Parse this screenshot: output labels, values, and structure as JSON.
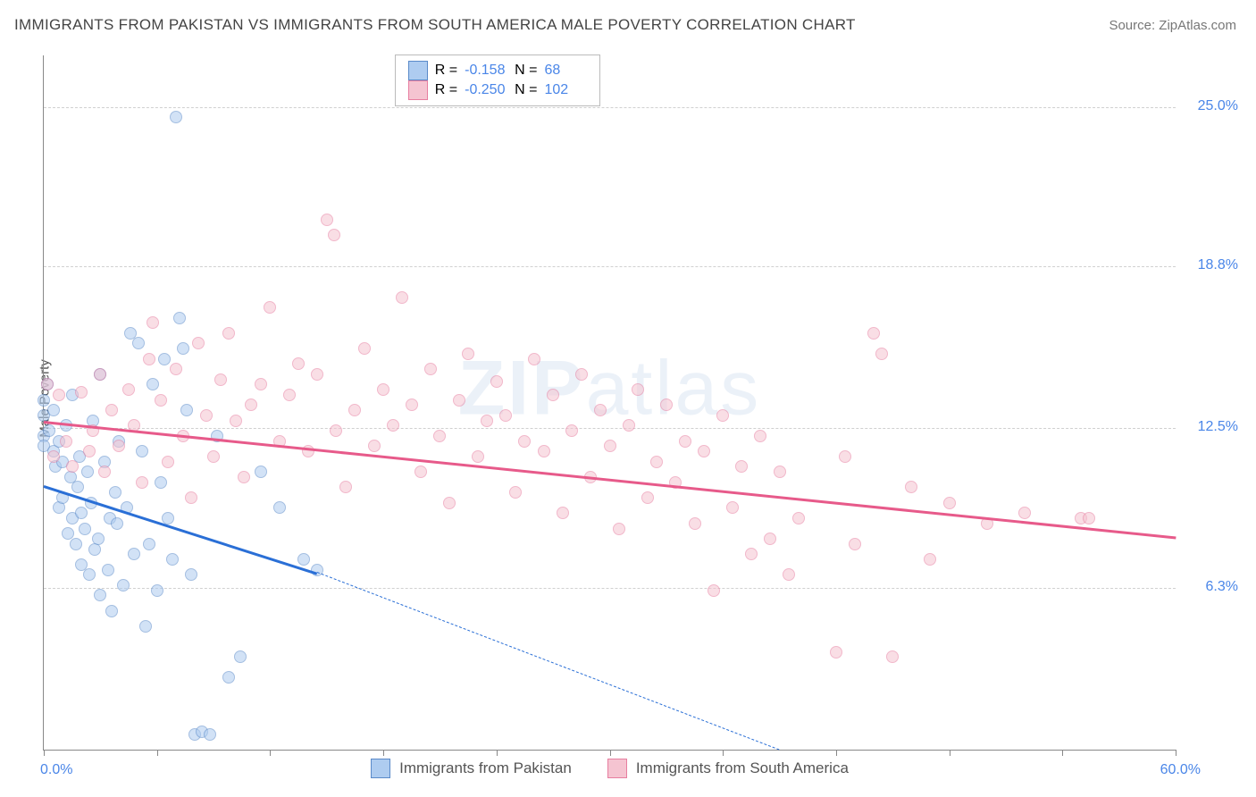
{
  "title": "IMMIGRANTS FROM PAKISTAN VS IMMIGRANTS FROM SOUTH AMERICA MALE POVERTY CORRELATION CHART",
  "source": "Source: ZipAtlas.com",
  "ylabel": "Male Poverty",
  "watermark": {
    "bold": "ZIP",
    "rest": "atlas"
  },
  "chart": {
    "type": "scatter",
    "xlim": [
      0,
      60
    ],
    "ylim": [
      0,
      27
    ],
    "background_color": "#ffffff",
    "grid_color": "#d0d0d0",
    "axis_color": "#888888",
    "tick_label_color": "#4a86e8",
    "xlim_labels": {
      "min": "0.0%",
      "max": "60.0%"
    },
    "yticks": [
      {
        "value": 6.3,
        "label": "6.3%"
      },
      {
        "value": 12.5,
        "label": "12.5%"
      },
      {
        "value": 18.8,
        "label": "18.8%"
      },
      {
        "value": 25.0,
        "label": "25.0%"
      }
    ],
    "xticks": [
      0,
      6,
      12,
      18,
      24,
      30,
      36,
      42,
      48,
      54,
      60
    ],
    "marker_radius": 7,
    "marker_opacity": 0.55,
    "trend_line_width": 2.5
  },
  "series": [
    {
      "key": "pakistan",
      "label": "Immigrants from Pakistan",
      "color_fill": "#aeccf0",
      "color_stroke": "#5a8ac9",
      "trend_color": "#2a6fd6",
      "R": "-0.158",
      "N": "68",
      "trend": {
        "x1": 0,
        "y1": 10.3,
        "x2": 14.5,
        "y2": 6.9,
        "solid": true
      },
      "trend_dash": {
        "x1": 14.5,
        "y1": 6.9,
        "x2": 39,
        "y2": 0
      },
      "points": [
        [
          0.0,
          13.6
        ],
        [
          0.0,
          12.2
        ],
        [
          0.0,
          13.0
        ],
        [
          0.0,
          11.8
        ],
        [
          0.2,
          14.2
        ],
        [
          0.3,
          12.4
        ],
        [
          0.5,
          11.6
        ],
        [
          0.5,
          13.2
        ],
        [
          0.6,
          11.0
        ],
        [
          0.8,
          12.0
        ],
        [
          0.8,
          9.4
        ],
        [
          1.0,
          11.2
        ],
        [
          1.0,
          9.8
        ],
        [
          1.2,
          12.6
        ],
        [
          1.3,
          8.4
        ],
        [
          1.4,
          10.6
        ],
        [
          1.5,
          13.8
        ],
        [
          1.5,
          9.0
        ],
        [
          1.7,
          8.0
        ],
        [
          1.8,
          10.2
        ],
        [
          1.9,
          11.4
        ],
        [
          2.0,
          9.2
        ],
        [
          2.0,
          7.2
        ],
        [
          2.2,
          8.6
        ],
        [
          2.3,
          10.8
        ],
        [
          2.4,
          6.8
        ],
        [
          2.5,
          9.6
        ],
        [
          2.6,
          12.8
        ],
        [
          2.7,
          7.8
        ],
        [
          2.9,
          8.2
        ],
        [
          3.0,
          6.0
        ],
        [
          3.0,
          14.6
        ],
        [
          3.2,
          11.2
        ],
        [
          3.4,
          7.0
        ],
        [
          3.5,
          9.0
        ],
        [
          3.6,
          5.4
        ],
        [
          3.8,
          10.0
        ],
        [
          3.9,
          8.8
        ],
        [
          4.0,
          12.0
        ],
        [
          4.2,
          6.4
        ],
        [
          4.4,
          9.4
        ],
        [
          4.6,
          16.2
        ],
        [
          4.8,
          7.6
        ],
        [
          5.0,
          15.8
        ],
        [
          5.2,
          11.6
        ],
        [
          5.4,
          4.8
        ],
        [
          5.6,
          8.0
        ],
        [
          5.8,
          14.2
        ],
        [
          6.0,
          6.2
        ],
        [
          6.2,
          10.4
        ],
        [
          6.4,
          15.2
        ],
        [
          6.6,
          9.0
        ],
        [
          6.8,
          7.4
        ],
        [
          7.0,
          24.6
        ],
        [
          7.2,
          16.8
        ],
        [
          7.4,
          15.6
        ],
        [
          7.6,
          13.2
        ],
        [
          7.8,
          6.8
        ],
        [
          8.0,
          0.6
        ],
        [
          8.4,
          0.7
        ],
        [
          8.8,
          0.6
        ],
        [
          9.2,
          12.2
        ],
        [
          9.8,
          2.8
        ],
        [
          10.4,
          3.6
        ],
        [
          11.5,
          10.8
        ],
        [
          12.5,
          9.4
        ],
        [
          13.8,
          7.4
        ],
        [
          14.5,
          7.0
        ]
      ]
    },
    {
      "key": "south_america",
      "label": "Immigrants from South America",
      "color_fill": "#f5c4d1",
      "color_stroke": "#e77ea0",
      "trend_color": "#e75a8a",
      "R": "-0.250",
      "N": "102",
      "trend": {
        "x1": 0,
        "y1": 12.8,
        "x2": 60,
        "y2": 8.3,
        "solid": true
      },
      "points": [
        [
          0.2,
          14.2
        ],
        [
          0.5,
          11.4
        ],
        [
          0.8,
          13.8
        ],
        [
          1.2,
          12.0
        ],
        [
          1.5,
          11.0
        ],
        [
          2.0,
          13.9
        ],
        [
          2.4,
          11.6
        ],
        [
          2.6,
          12.4
        ],
        [
          3.0,
          14.6
        ],
        [
          3.2,
          10.8
        ],
        [
          3.6,
          13.2
        ],
        [
          4.0,
          11.8
        ],
        [
          4.5,
          14.0
        ],
        [
          4.8,
          12.6
        ],
        [
          5.2,
          10.4
        ],
        [
          5.6,
          15.2
        ],
        [
          5.8,
          16.6
        ],
        [
          6.2,
          13.6
        ],
        [
          6.6,
          11.2
        ],
        [
          7.0,
          14.8
        ],
        [
          7.4,
          12.2
        ],
        [
          7.8,
          9.8
        ],
        [
          8.2,
          15.8
        ],
        [
          8.6,
          13.0
        ],
        [
          9.0,
          11.4
        ],
        [
          9.4,
          14.4
        ],
        [
          9.8,
          16.2
        ],
        [
          10.2,
          12.8
        ],
        [
          10.6,
          10.6
        ],
        [
          11.0,
          13.4
        ],
        [
          11.5,
          14.2
        ],
        [
          12.0,
          17.2
        ],
        [
          12.5,
          12.0
        ],
        [
          13.0,
          13.8
        ],
        [
          13.5,
          15.0
        ],
        [
          14.0,
          11.6
        ],
        [
          14.5,
          14.6
        ],
        [
          15.0,
          20.6
        ],
        [
          15.4,
          20.0
        ],
        [
          15.5,
          12.4
        ],
        [
          16.0,
          10.2
        ],
        [
          16.5,
          13.2
        ],
        [
          17.0,
          15.6
        ],
        [
          17.5,
          11.8
        ],
        [
          18.0,
          14.0
        ],
        [
          18.5,
          12.6
        ],
        [
          19.0,
          17.6
        ],
        [
          19.5,
          13.4
        ],
        [
          20.0,
          10.8
        ],
        [
          20.5,
          14.8
        ],
        [
          21.0,
          12.2
        ],
        [
          21.5,
          9.6
        ],
        [
          22.0,
          13.6
        ],
        [
          22.5,
          15.4
        ],
        [
          23.0,
          11.4
        ],
        [
          23.5,
          12.8
        ],
        [
          24.0,
          14.3
        ],
        [
          24.5,
          13.0
        ],
        [
          25.0,
          10.0
        ],
        [
          25.5,
          12.0
        ],
        [
          26.0,
          15.2
        ],
        [
          26.5,
          11.6
        ],
        [
          27.0,
          13.8
        ],
        [
          27.5,
          9.2
        ],
        [
          28.0,
          12.4
        ],
        [
          28.5,
          14.6
        ],
        [
          29.0,
          10.6
        ],
        [
          29.5,
          13.2
        ],
        [
          30.0,
          11.8
        ],
        [
          30.5,
          8.6
        ],
        [
          31.0,
          12.6
        ],
        [
          31.5,
          14.0
        ],
        [
          32.0,
          9.8
        ],
        [
          32.5,
          11.2
        ],
        [
          33.0,
          13.4
        ],
        [
          33.5,
          10.4
        ],
        [
          34.0,
          12.0
        ],
        [
          34.5,
          8.8
        ],
        [
          35.0,
          11.6
        ],
        [
          35.5,
          6.2
        ],
        [
          36.0,
          13.0
        ],
        [
          36.5,
          9.4
        ],
        [
          37.0,
          11.0
        ],
        [
          37.5,
          7.6
        ],
        [
          38.0,
          12.2
        ],
        [
          38.5,
          8.2
        ],
        [
          39.0,
          10.8
        ],
        [
          39.5,
          6.8
        ],
        [
          40.0,
          9.0
        ],
        [
          42.0,
          3.8
        ],
        [
          42.5,
          11.4
        ],
        [
          43.0,
          8.0
        ],
        [
          44.0,
          16.2
        ],
        [
          44.4,
          15.4
        ],
        [
          45.0,
          3.6
        ],
        [
          46.0,
          10.2
        ],
        [
          47.0,
          7.4
        ],
        [
          48.0,
          9.6
        ],
        [
          50.0,
          8.8
        ],
        [
          52.0,
          9.2
        ],
        [
          55.0,
          9.0
        ],
        [
          55.4,
          9.0
        ]
      ]
    }
  ],
  "legend_top": {
    "r_label": "R =",
    "n_label": "N ="
  }
}
